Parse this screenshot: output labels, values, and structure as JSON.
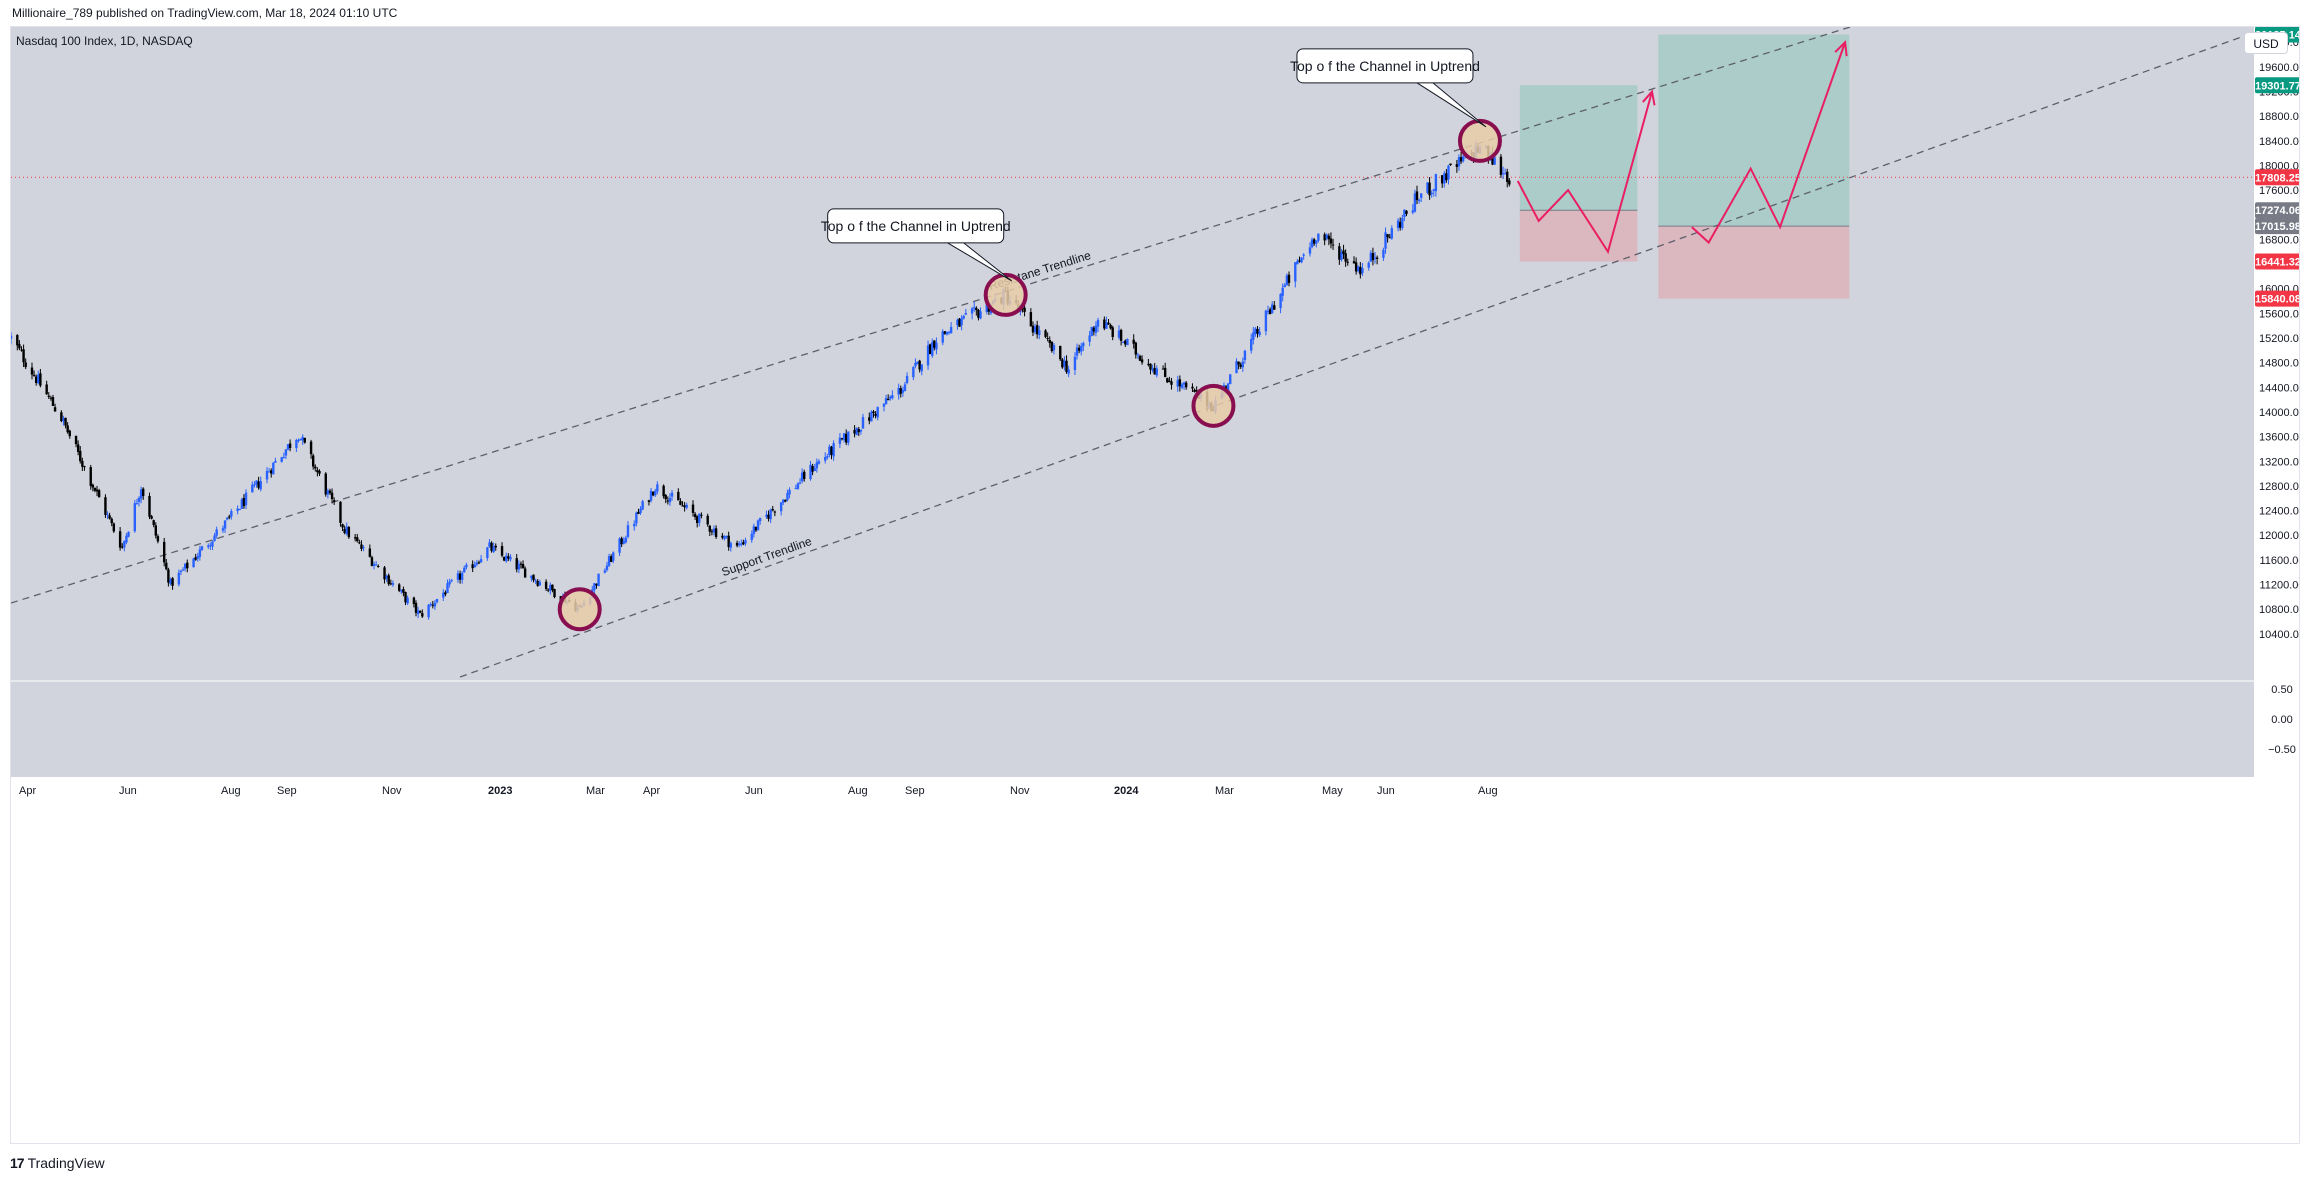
{
  "header": {
    "published_text": "Millionaire_789 published on TradingView.com, Mar 18, 2024 01:10 UTC"
  },
  "symbol": {
    "label": "Nasdaq 100 Index, 1D, NASDAQ"
  },
  "currency_button": "USD",
  "footer": {
    "logo_mark": "17",
    "logo_text": "TradingView"
  },
  "colors": {
    "background": "#d1d4dc",
    "bullish_candle": "#2962ff",
    "bearish_candle": "#000000",
    "trendline": "#5d606b",
    "target_zone": "#a9cbc7",
    "stop_zone": "#dbb5bd",
    "projection_arrow": "#e91e63",
    "highlight_circle_stroke": "#880e4f",
    "highlight_circle_fill": "#e9cba7",
    "label_green": "#089981",
    "label_red": "#f23645",
    "label_gray": "#787b86"
  },
  "chart_data": {
    "type": "candlestick",
    "price_axis": {
      "ticks": [
        "20000.00",
        "19600.00",
        "19200.00",
        "18800.00",
        "18400.00",
        "18000.00",
        "17600.00",
        "17200.00",
        "16800.00",
        "16400.00",
        "16000.00",
        "15600.00",
        "15200.00",
        "14800.00",
        "14400.00",
        "14000.00",
        "13600.00",
        "13200.00",
        "12800.00",
        "12400.00",
        "12000.00",
        "11600.00",
        "11200.00",
        "10800.00",
        "10400.00"
      ],
      "range": [
        10000,
        20300
      ]
    },
    "oscillator_axis": {
      "ticks": [
        "0.50",
        "0.00",
        "−0.50"
      ]
    },
    "time_axis": {
      "ticks": [
        {
          "label": "Apr",
          "bold": false
        },
        {
          "label": "Jun",
          "bold": false
        },
        {
          "label": "Aug",
          "bold": false
        },
        {
          "label": "Sep",
          "bold": false
        },
        {
          "label": "Nov",
          "bold": false
        },
        {
          "label": "2023",
          "bold": true
        },
        {
          "label": "Mar",
          "bold": false
        },
        {
          "label": "Apr",
          "bold": false
        },
        {
          "label": "Jun",
          "bold": false
        },
        {
          "label": "Aug",
          "bold": false
        },
        {
          "label": "Sep",
          "bold": false
        },
        {
          "label": "Nov",
          "bold": false
        },
        {
          "label": "2024",
          "bold": true
        },
        {
          "label": "Mar",
          "bold": false
        },
        {
          "label": "May",
          "bold": false
        },
        {
          "label": "Jun",
          "bold": false
        },
        {
          "label": "Aug",
          "bold": false
        }
      ]
    },
    "price_path": [
      {
        "date": "2022-04-01",
        "close": 15200
      },
      {
        "date": "2022-04-25",
        "close": 13900
      },
      {
        "date": "2022-05-24",
        "close": 11800
      },
      {
        "date": "2022-06-02",
        "close": 12800
      },
      {
        "date": "2022-06-16",
        "close": 11200
      },
      {
        "date": "2022-07-15",
        "close": 12300
      },
      {
        "date": "2022-08-16",
        "close": 13650
      },
      {
        "date": "2022-09-07",
        "close": 12100
      },
      {
        "date": "2022-10-13",
        "close": 10700
      },
      {
        "date": "2022-11-15",
        "close": 11800
      },
      {
        "date": "2022-12-28",
        "close": 10800
      },
      {
        "date": "2023-02-02",
        "close": 12800
      },
      {
        "date": "2023-03-13",
        "close": 11800
      },
      {
        "date": "2023-04-18",
        "close": 13100
      },
      {
        "date": "2023-05-31",
        "close": 14400
      },
      {
        "date": "2023-06-16",
        "close": 15200
      },
      {
        "date": "2023-07-19",
        "close": 15900
      },
      {
        "date": "2023-08-18",
        "close": 14700
      },
      {
        "date": "2023-09-01",
        "close": 15500
      },
      {
        "date": "2023-10-02",
        "close": 14600
      },
      {
        "date": "2023-10-26",
        "close": 14100
      },
      {
        "date": "2023-12-14",
        "close": 16900
      },
      {
        "date": "2024-01-05",
        "close": 16300
      },
      {
        "date": "2024-02-01",
        "close": 17500
      },
      {
        "date": "2024-03-01",
        "close": 18300
      },
      {
        "date": "2024-03-15",
        "close": 17808.25
      }
    ],
    "trendlines": [
      {
        "name": "Resistane Trendline",
        "from": {
          "date": "2022-04-01",
          "price": 10900
        },
        "to": {
          "date": "2024-08-20",
          "price": 20200
        }
      },
      {
        "name": "Support Trendline",
        "from": {
          "date": "2022-11-01",
          "price": 9700
        },
        "to": {
          "date": "2024-08-20",
          "price": 17750
        }
      }
    ],
    "annotations": [
      {
        "text": "Top o f the Channel in Uptrend",
        "date": "2023-07-19",
        "price": 15900
      },
      {
        "text": "Top o f the Channel in Uptrend",
        "date": "2024-03-01",
        "price": 18400
      }
    ],
    "highlight_circles": [
      {
        "date": "2022-12-28",
        "price": 10800
      },
      {
        "date": "2023-07-19",
        "price": 15900
      },
      {
        "date": "2023-10-26",
        "price": 14100
      },
      {
        "date": "2024-03-01",
        "price": 18400
      }
    ],
    "positions": [
      {
        "type": "long",
        "entry": 17274.06,
        "target": 19301.77,
        "stop": 16441.32,
        "start": "2024-03-20",
        "end": "2024-05-15"
      },
      {
        "type": "long",
        "entry": 17015.98,
        "target": 20125.14,
        "stop": 15840.08,
        "start": "2024-05-25",
        "end": "2024-08-24"
      }
    ],
    "projection_paths": [
      [
        {
          "date": "2024-03-19",
          "price": 17750
        },
        {
          "date": "2024-03-29",
          "price": 17100
        },
        {
          "date": "2024-04-12",
          "price": 17600
        },
        {
          "date": "2024-05-01",
          "price": 16600
        },
        {
          "date": "2024-05-22",
          "price": 19200
        }
      ],
      [
        {
          "date": "2024-06-10",
          "price": 17000
        },
        {
          "date": "2024-06-18",
          "price": 16750
        },
        {
          "date": "2024-07-08",
          "price": 17950
        },
        {
          "date": "2024-07-22",
          "price": 17000
        },
        {
          "date": "2024-08-22",
          "price": 20000
        }
      ]
    ],
    "price_labels": [
      {
        "value": "20125.14",
        "price": 20125.14,
        "color": "#089981"
      },
      {
        "value": "19301.77",
        "price": 19301.77,
        "color": "#089981"
      },
      {
        "value": "17808.25",
        "price": 17808.25,
        "color": "#f23645"
      },
      {
        "value": "17274.06",
        "price": 17274.06,
        "color": "#787b86"
      },
      {
        "value": "17015.98",
        "price": 17015.98,
        "color": "#787b86"
      },
      {
        "value": "16441.32",
        "price": 16441.32,
        "color": "#f23645"
      },
      {
        "value": "15840.08",
        "price": 15840.08,
        "color": "#f23645"
      }
    ],
    "current_price": 17808.25
  }
}
